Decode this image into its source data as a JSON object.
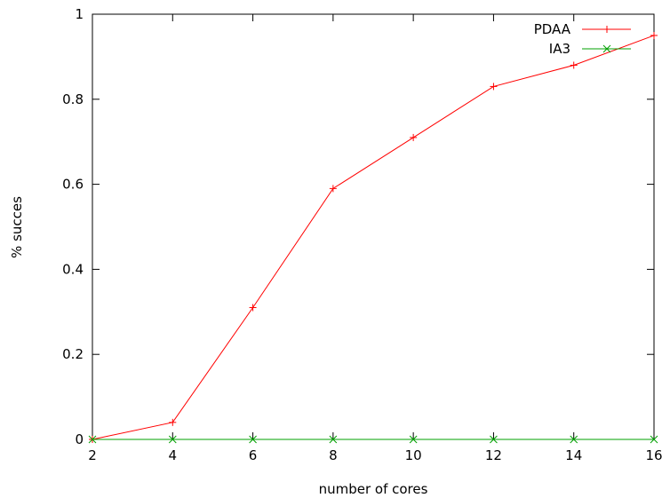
{
  "chart_data": {
    "type": "line",
    "title": "",
    "xlabel": "number of cores",
    "ylabel": "% succes",
    "xlim": [
      2,
      16
    ],
    "ylim": [
      0,
      1
    ],
    "x": [
      2,
      4,
      6,
      8,
      10,
      12,
      14,
      16
    ],
    "xticks": [
      "2",
      "4",
      "6",
      "8",
      "10",
      "12",
      "14",
      "16"
    ],
    "yticks": [
      "0",
      "0.2",
      "0.4",
      "0.6",
      "0.8",
      "1"
    ],
    "grid": false,
    "legend_position": "top-right",
    "series": [
      {
        "name": "PDAA",
        "color": "#ff0000",
        "marker": "plus",
        "values": [
          0,
          0.04,
          0.31,
          0.59,
          0.71,
          0.83,
          0.88,
          0.95
        ]
      },
      {
        "name": "IA3",
        "color": "#00a000",
        "marker": "cross",
        "values": [
          0,
          0,
          0,
          0,
          0,
          0,
          0,
          0
        ]
      }
    ]
  }
}
